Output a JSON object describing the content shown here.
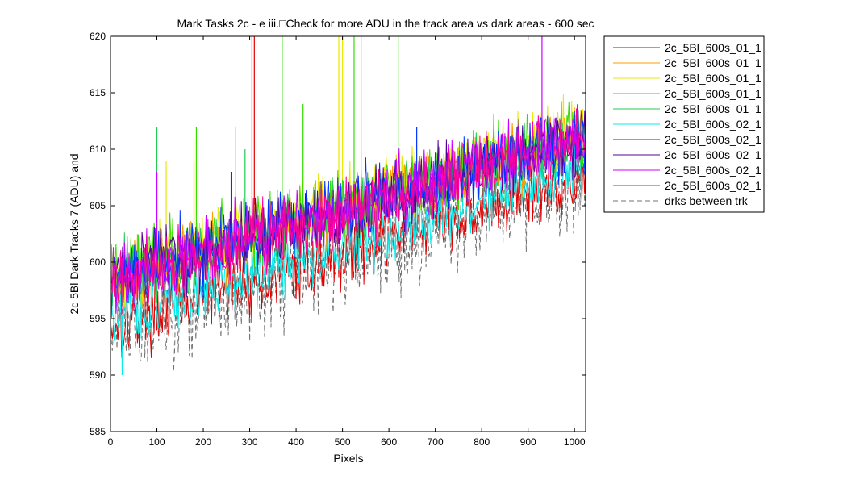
{
  "chart_data": {
    "type": "line",
    "title": "Mark Tasks 2c - e iii.□Check for more ADU in the track area vs dark areas - 600 sec",
    "xlabel": "Pixels",
    "ylabel": "2c 5Bl Dark Tracks 7 (ADU) and",
    "xlim": [
      0,
      1024
    ],
    "ylim": [
      585,
      620
    ],
    "xticks": [
      0,
      100,
      200,
      300,
      400,
      500,
      600,
      700,
      800,
      900,
      1000
    ],
    "yticks": [
      585,
      590,
      595,
      600,
      605,
      610,
      615,
      620
    ],
    "grid": false,
    "legend_position": "outside-top-right",
    "series": [
      {
        "name": "2c_5Bl_600s_01_1",
        "color": "#e00000",
        "trend_start": 594.5,
        "trend_end": 607.5,
        "spikes": [
          [
            305,
            620
          ],
          [
            310,
            620
          ]
        ]
      },
      {
        "name": "2c_5Bl_600s_01_1",
        "color": "#ff9900",
        "trend_start": 598.5,
        "trend_end": 611.5,
        "spikes": [
          [
            180,
            609
          ]
        ]
      },
      {
        "name": "2c_5Bl_600s_01_1",
        "color": "#e8e800",
        "trend_start": 599.0,
        "trend_end": 612.0,
        "spikes": [
          [
            492,
            620
          ],
          [
            500,
            620
          ],
          [
            180,
            611
          ],
          [
            120,
            609
          ]
        ]
      },
      {
        "name": "2c_5Bl_600s_01_1",
        "color": "#33dd00",
        "trend_start": 599.0,
        "trend_end": 611.5,
        "spikes": [
          [
            370,
            620
          ],
          [
            525,
            620
          ],
          [
            540,
            620
          ],
          [
            620,
            620
          ],
          [
            185,
            612
          ],
          [
            270,
            612
          ],
          [
            415,
            614
          ]
        ]
      },
      {
        "name": "2c_5Bl_600s_01_1",
        "color": "#22cc55",
        "trend_start": 598.5,
        "trend_end": 611.0,
        "spikes": [
          [
            100,
            612
          ],
          [
            290,
            610
          ]
        ]
      },
      {
        "name": "2c_5Bl_600s_02_1",
        "color": "#00eeee",
        "trend_start": 595.0,
        "trend_end": 608.5,
        "spikes": [
          [
            25,
            590
          ]
        ]
      },
      {
        "name": "2c_5Bl_600s_02_1",
        "color": "#0033ff",
        "trend_start": 598.5,
        "trend_end": 611.0,
        "spikes": [
          [
            260,
            608
          ],
          [
            660,
            612
          ]
        ]
      },
      {
        "name": "2c_5Bl_600s_02_1",
        "color": "#550099",
        "trend_start": 598.5,
        "trend_end": 611.0,
        "spikes": []
      },
      {
        "name": "2c_5Bl_600s_02_1",
        "color": "#cc00ff",
        "trend_start": 598.5,
        "trend_end": 611.0,
        "spikes": [
          [
            930,
            620
          ],
          [
            100,
            608
          ]
        ]
      },
      {
        "name": "2c_5Bl_600s_02_1",
        "color": "#ff0099",
        "trend_start": 598.0,
        "trend_end": 611.0,
        "spikes": [
          [
            0,
            585
          ]
        ]
      },
      {
        "name": "drks between trk",
        "color": "#707070",
        "dashed": true,
        "trend_start": 593.5,
        "trend_end": 607.0,
        "spikes": []
      }
    ]
  }
}
